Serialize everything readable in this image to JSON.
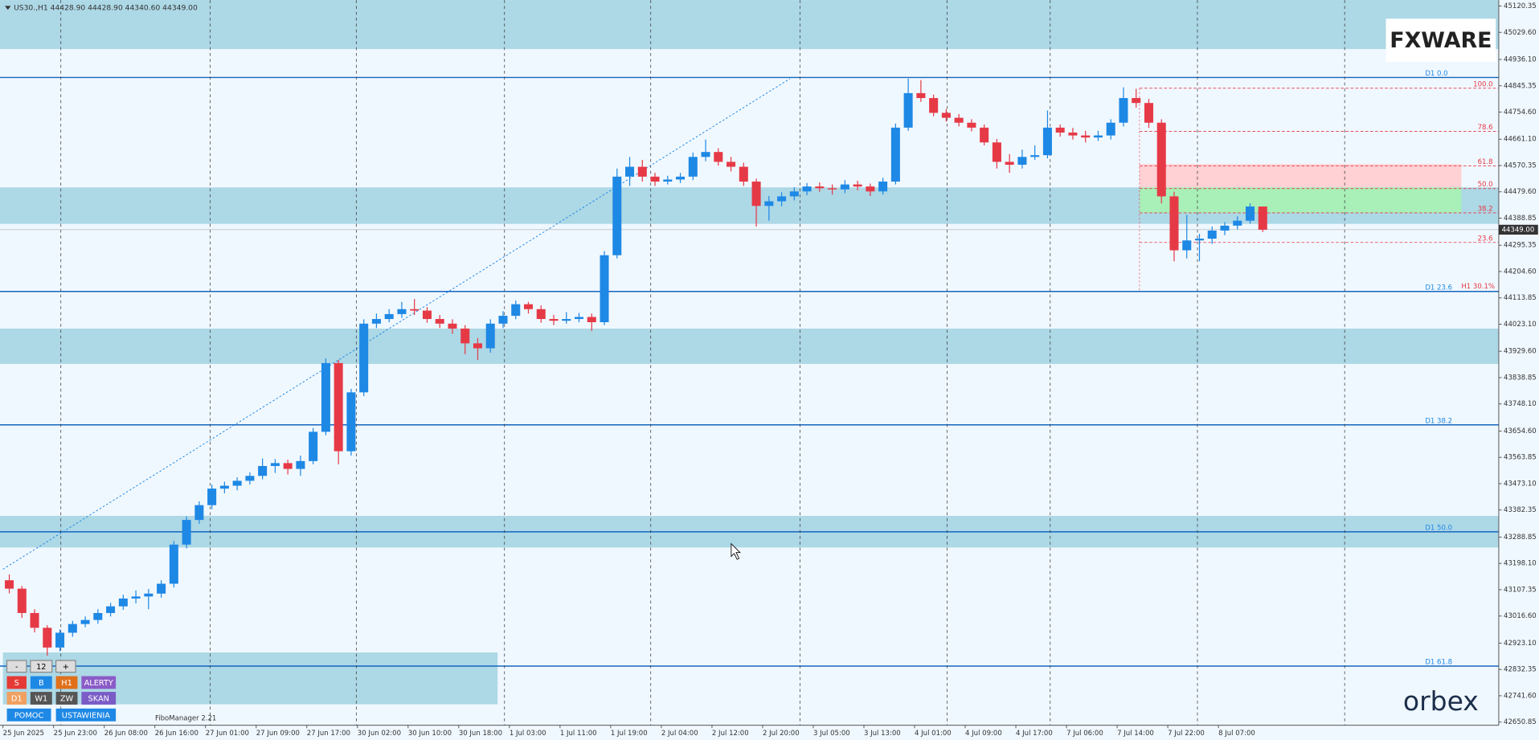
{
  "chart_data": {
    "type": "candlestick",
    "header": "US30.,H1  44428.90 44428.90 44340.60 44349.00",
    "colors": {
      "up": "#1e88e5",
      "down": "#e63946"
    },
    "ylim": [
      42640,
      45141
    ],
    "yticks": [
      {
        "value": 45120.35,
        "label": "45120.35"
      },
      {
        "value": 45029.6,
        "label": "45029.60"
      },
      {
        "value": 44936.1,
        "label": "44936.10"
      },
      {
        "value": 44845.35,
        "label": "44845.35"
      },
      {
        "value": 44754.6,
        "label": "44754.60"
      },
      {
        "value": 44661.1,
        "label": "44661.10"
      },
      {
        "value": 44570.35,
        "label": "44570.35"
      },
      {
        "value": 44479.6,
        "label": "44479.60"
      },
      {
        "value": 44388.85,
        "label": "44388.85"
      },
      {
        "value": 44295.35,
        "label": "44295.35"
      },
      {
        "value": 44204.6,
        "label": "44204.60"
      },
      {
        "value": 44113.85,
        "label": "44113.85"
      },
      {
        "value": 44023.1,
        "label": "44023.10"
      },
      {
        "value": 43929.6,
        "label": "43929.60"
      },
      {
        "value": 43838.85,
        "label": "43838.85"
      },
      {
        "value": 43748.1,
        "label": "43748.10"
      },
      {
        "value": 43654.6,
        "label": "43654.60"
      },
      {
        "value": 43563.85,
        "label": "43563.85"
      },
      {
        "value": 43473.1,
        "label": "43473.10"
      },
      {
        "value": 43382.35,
        "label": "43382.35"
      },
      {
        "value": 43288.85,
        "label": "43288.85"
      },
      {
        "value": 43198.1,
        "label": "43198.10"
      },
      {
        "value": 43107.35,
        "label": "43107.35"
      },
      {
        "value": 43016.6,
        "label": "43016.60"
      },
      {
        "value": 42923.1,
        "label": "42923.10"
      },
      {
        "value": 42832.35,
        "label": "42832.35"
      },
      {
        "value": 42741.6,
        "label": "42741.60"
      },
      {
        "value": 42650.85,
        "label": "42650.85"
      }
    ],
    "current_price": {
      "value": 44349,
      "label": "44349.00"
    },
    "categories": [
      "25 Jun 2025",
      null,
      null,
      null,
      "25 Jun 23:00",
      null,
      null,
      null,
      "26 Jun 08:00",
      null,
      null,
      null,
      "26 Jun 16:00",
      null,
      null,
      null,
      "27 Jun 01:00",
      null,
      null,
      null,
      "27 Jun 09:00",
      null,
      null,
      null,
      "27 Jun 17:00",
      null,
      null,
      null,
      "30 Jun 02:00",
      null,
      null,
      null,
      "30 Jun 10:00",
      null,
      null,
      null,
      "30 Jun 18:00",
      null,
      null,
      null,
      "1 Jul 03:00",
      null,
      null,
      null,
      "1 Jul 11:00",
      null,
      null,
      null,
      "1 Jul 19:00",
      null,
      null,
      null,
      "2 Jul 04:00",
      null,
      null,
      null,
      "2 Jul 12:00",
      null,
      null,
      null,
      "2 Jul 20:00",
      null,
      null,
      null,
      "3 Jul 05:00",
      null,
      null,
      null,
      "3 Jul 13:00",
      null,
      null,
      null,
      "4 Jul 01:00",
      null,
      null,
      null,
      "4 Jul 09:00",
      null,
      null,
      null,
      "4 Jul 17:00",
      null,
      null,
      null,
      "7 Jul 06:00",
      null,
      null,
      null,
      "7 Jul 14:00",
      null,
      null,
      null,
      "7 Jul 22:00",
      null,
      null,
      null,
      "8 Jul 07:00",
      null,
      null,
      null
    ],
    "open": [
      43140,
      43111,
      43027,
      42976,
      42908,
      42959,
      42989,
      43003,
      43027,
      43050,
      43077,
      43084,
      43094,
      43128,
      43263,
      43348,
      43399,
      43456,
      43466,
      43483,
      43500,
      43534,
      43544,
      43524,
      43551,
      43652,
      43889,
      43585,
      43788,
      44025,
      44041,
      44058,
      44075,
      44070,
      44041,
      44025,
      44008,
      43957,
      43940,
      44025,
      44052,
      44092,
      44075,
      44041,
      44035,
      44041,
      44048,
      44030,
      44261,
      44532,
      44566,
      44532,
      44515,
      44522,
      44532,
      44600,
      44617,
      44583,
      44566,
      44515,
      44431,
      44447,
      44464,
      44481,
      44498,
      44492,
      44488,
      44505,
      44498,
      44481,
      44515,
      44701,
      44820,
      44803,
      44752,
      44735,
      44718,
      44701,
      44650,
      44583,
      44573,
      44600,
      44606,
      44701,
      44684,
      44674,
      44667,
      44674,
      44718,
      44803,
      44786,
      44718,
      44464,
      44278,
      44312,
      44318,
      44346,
      44363,
      44380,
      44429
    ],
    "high": [
      43160,
      43120,
      43040,
      42985,
      42970,
      43000,
      43015,
      43040,
      43062,
      43090,
      43105,
      43110,
      43140,
      43275,
      43360,
      43412,
      43470,
      43480,
      43495,
      43512,
      43560,
      43558,
      43556,
      43570,
      43665,
      43905,
      43900,
      43800,
      44040,
      44060,
      44075,
      44100,
      44110,
      44082,
      44055,
      44040,
      44020,
      43975,
      44040,
      44068,
      44105,
      44100,
      44088,
      44055,
      44065,
      44062,
      44060,
      44275,
      44560,
      44600,
      44590,
      44545,
      44535,
      44545,
      44615,
      44660,
      44630,
      44600,
      44580,
      44525,
      44465,
      44478,
      44495,
      44510,
      44512,
      44505,
      44520,
      44518,
      44508,
      44528,
      44715,
      44870,
      44865,
      44815,
      44765,
      44748,
      44730,
      44712,
      44662,
      44610,
      44625,
      44640,
      44760,
      44712,
      44700,
      44690,
      44690,
      44730,
      44840,
      44835,
      44800,
      44730,
      44480,
      44400,
      44335,
      44360,
      44375,
      44395,
      44440,
      44429
    ],
    "low": [
      43095,
      43010,
      42960,
      42880,
      42895,
      42945,
      42978,
      42990,
      43015,
      43038,
      43060,
      43040,
      43080,
      43115,
      43250,
      43335,
      43385,
      43440,
      43450,
      43470,
      43488,
      43510,
      43505,
      43500,
      43540,
      43640,
      43540,
      43570,
      43775,
      44010,
      44030,
      44045,
      44055,
      44028,
      44010,
      43990,
      43920,
      43900,
      43925,
      44010,
      44040,
      44060,
      44028,
      44020,
      44025,
      44030,
      44000,
      44020,
      44250,
      44500,
      44515,
      44500,
      44505,
      44510,
      44520,
      44585,
      44570,
      44550,
      44500,
      44360,
      44380,
      44430,
      44450,
      44468,
      44480,
      44470,
      44475,
      44485,
      44465,
      44470,
      44505,
      44690,
      44790,
      44740,
      44722,
      44705,
      44688,
      44640,
      44560,
      44545,
      44560,
      44590,
      44595,
      44670,
      44660,
      44650,
      44655,
      44660,
      44705,
      44770,
      44700,
      44440,
      44240,
      44250,
      44240,
      44300,
      44330,
      44350,
      44370,
      44341
    ],
    "close": [
      43111,
      43027,
      42976,
      42908,
      42959,
      42989,
      43003,
      43027,
      43050,
      43077,
      43084,
      43094,
      43128,
      43263,
      43348,
      43399,
      43456,
      43466,
      43483,
      43500,
      43534,
      43544,
      43524,
      43551,
      43652,
      43889,
      43585,
      43788,
      44025,
      44041,
      44058,
      44075,
      44070,
      44041,
      44025,
      44008,
      43957,
      43940,
      44025,
      44052,
      44092,
      44075,
      44041,
      44035,
      44041,
      44048,
      44030,
      44261,
      44532,
      44566,
      44532,
      44515,
      44522,
      44532,
      44600,
      44617,
      44583,
      44566,
      44515,
      44431,
      44447,
      44464,
      44481,
      44498,
      44492,
      44488,
      44505,
      44498,
      44481,
      44515,
      44701,
      44820,
      44803,
      44752,
      44735,
      44718,
      44701,
      44650,
      44583,
      44573,
      44600,
      44606,
      44701,
      44684,
      44674,
      44667,
      44674,
      44718,
      44803,
      44786,
      44718,
      44464,
      44278,
      44312,
      44318,
      44346,
      44363,
      44380,
      44429,
      44349
    ],
    "zones": [
      {
        "from": 44972,
        "to": 45141
      },
      {
        "from": 44369,
        "to": 44495
      },
      {
        "from": 43886,
        "to": 44008
      },
      {
        "from": 43253,
        "to": 43362
      }
    ],
    "partial_zone": {
      "from": 42712,
      "to": 42891
    },
    "d1_levels": [
      {
        "label": "D1 0.0",
        "value": 44874
      },
      {
        "label": "D1 23.6",
        "value": 44136
      },
      {
        "label": "D1 38.2",
        "value": 43676
      },
      {
        "label": "D1 50.0",
        "value": 43307
      },
      {
        "label": "D1 61.8",
        "value": 42844
      }
    ],
    "fibo_levels": [
      {
        "label": "100.0",
        "value": 44837
      },
      {
        "label": "78.6",
        "value": 44688
      },
      {
        "label": "61.8",
        "value": 44569
      },
      {
        "label": "50.0",
        "value": 44491
      },
      {
        "label": "38.2",
        "value": 44407
      },
      {
        "label": "23.6",
        "value": 44305
      }
    ],
    "h1_label": "H1 30.1%",
    "target_zones": [
      {
        "from": 44495,
        "to": 44575,
        "color": "#ffd0d4"
      },
      {
        "from": 44407,
        "to": 44495,
        "color": "#a8f0b8"
      }
    ]
  },
  "panel": {
    "buttons": [
      "-",
      "12",
      "+",
      "S",
      "B",
      "H1",
      "ALERTY",
      "D1",
      "W1",
      "ZW",
      "SKAN",
      "POMOC",
      "USTAWIENIA"
    ],
    "indicator": "FiboManager 2.21"
  },
  "logos": {
    "top": "FXWARE",
    "bottom": "orbex"
  }
}
